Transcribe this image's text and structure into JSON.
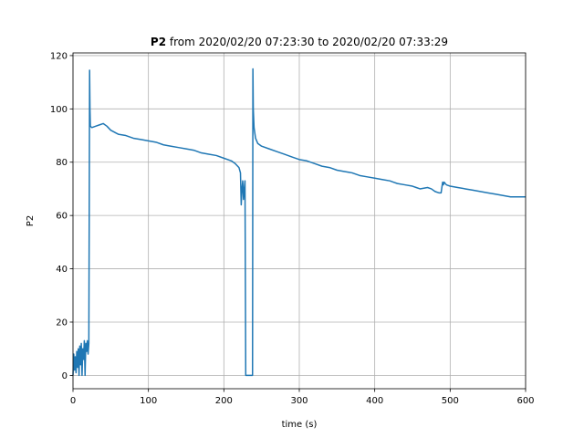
{
  "chart_data": {
    "type": "line",
    "title_bold": "P2",
    "title_rest": " from 2020/02/20 07:23:30 to 2020/02/20 07:33:29",
    "xlabel": "time (s)",
    "ylabel": "P2",
    "xlim": [
      0,
      600
    ],
    "ylim": [
      -5,
      121
    ],
    "xticks": [
      0,
      100,
      200,
      300,
      400,
      500,
      600
    ],
    "yticks": [
      0,
      20,
      40,
      60,
      80,
      100,
      120
    ],
    "grid": true,
    "line_color": "#1f77b4",
    "series": [
      {
        "x": [
          0,
          1,
          2,
          3,
          4,
          5,
          6,
          7,
          8,
          9,
          10,
          11,
          12,
          13,
          14,
          15,
          16,
          17,
          18,
          19,
          20,
          21,
          21.5,
          22,
          22.5,
          23,
          25,
          30,
          35,
          40,
          45,
          50,
          60,
          70,
          80,
          90,
          100,
          110,
          120,
          130,
          140,
          150,
          160,
          170,
          180,
          190,
          200,
          210,
          215,
          220,
          222,
          223,
          224,
          225,
          226,
          227,
          228,
          229,
          230,
          231,
          232,
          233,
          234,
          235,
          236,
          237,
          238,
          238.5,
          239,
          240,
          242,
          245,
          250,
          260,
          270,
          280,
          290,
          300,
          310,
          320,
          330,
          340,
          350,
          360,
          370,
          380,
          390,
          400,
          410,
          420,
          425,
          430,
          440,
          450,
          455,
          460,
          470,
          475,
          480,
          485,
          488,
          490,
          491,
          492,
          495,
          500,
          510,
          520,
          530,
          540,
          550,
          560,
          570,
          580,
          590,
          600
        ],
        "y": [
          0,
          8,
          2,
          7,
          1,
          9,
          3,
          10,
          0,
          11,
          4,
          12,
          0,
          10,
          6,
          13,
          0,
          12,
          9,
          13,
          8,
          12,
          60,
          114.5,
          100,
          93.5,
          93,
          93.5,
          94,
          94.5,
          93.5,
          92,
          90.5,
          90,
          89,
          88.5,
          88,
          87.5,
          86.5,
          86,
          85.5,
          85,
          84.5,
          83.5,
          83,
          82.5,
          81.5,
          80.5,
          79.5,
          78,
          76,
          64,
          70,
          73,
          66,
          70,
          73,
          0,
          0,
          0,
          0,
          0,
          0,
          0,
          0,
          0,
          0,
          115,
          100,
          93,
          89,
          87,
          86,
          85,
          84,
          83,
          82,
          81,
          80.5,
          79.5,
          78.5,
          78,
          77,
          76.5,
          76,
          75,
          74.5,
          74,
          73.5,
          73,
          72.5,
          72,
          71.5,
          71,
          70.5,
          70,
          70.5,
          70,
          69,
          68.5,
          68.5,
          72.5,
          71.5,
          72.5,
          71.5,
          71,
          70.5,
          70,
          69.5,
          69,
          68.5,
          68,
          67.5,
          67,
          67,
          67
        ]
      }
    ]
  }
}
